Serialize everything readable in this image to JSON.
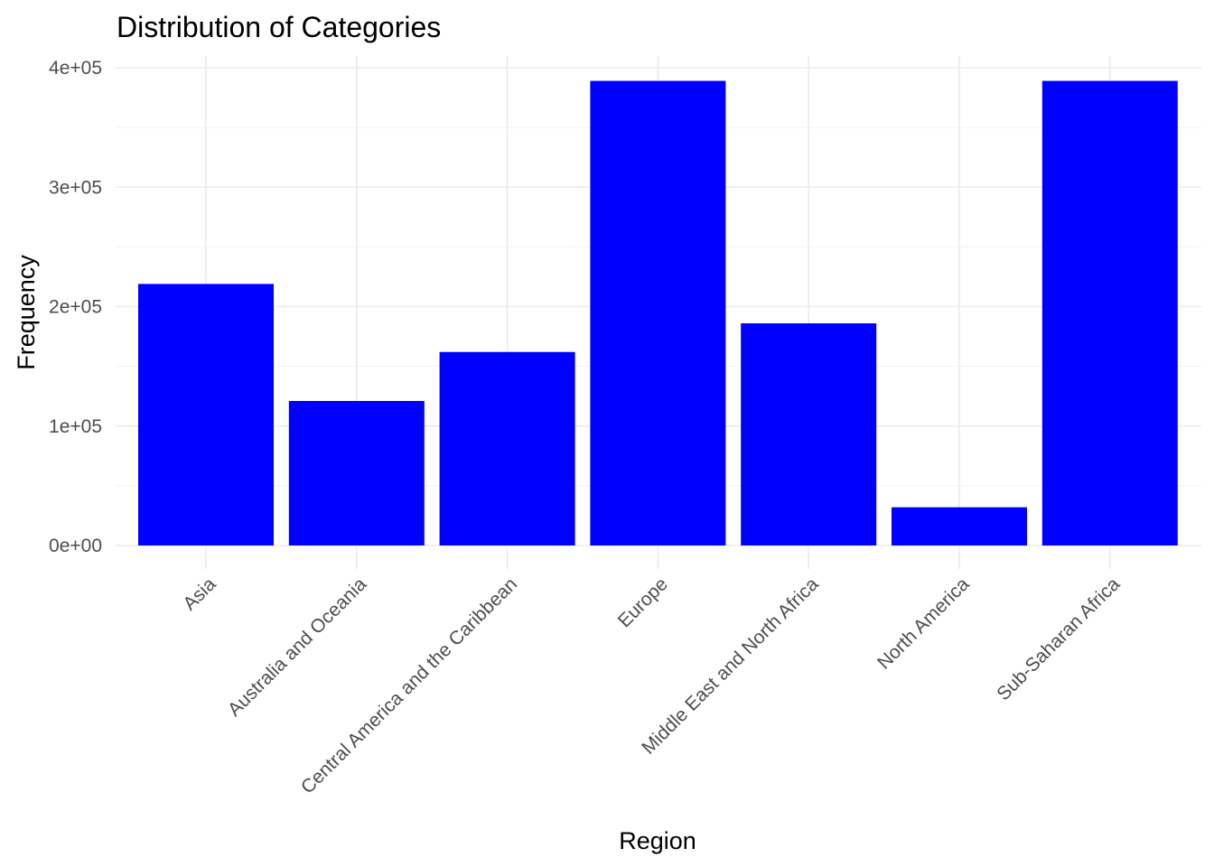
{
  "chart_data": {
    "type": "bar",
    "title": "Distribution of Categories",
    "xlabel": "Region",
    "ylabel": "Frequency",
    "categories": [
      "Asia",
      "Australia and Oceania",
      "Central America and the Caribbean",
      "Europe",
      "Middle East and North Africa",
      "North America",
      "Sub-Saharan Africa"
    ],
    "values": [
      219000,
      121000,
      162000,
      389000,
      186000,
      32000,
      389000
    ],
    "ylim": [
      0,
      400000
    ],
    "yticks": [
      {
        "value": 0,
        "label": "0e+00"
      },
      {
        "value": 100000,
        "label": "1e+05"
      },
      {
        "value": 200000,
        "label": "2e+05"
      },
      {
        "value": 300000,
        "label": "3e+05"
      },
      {
        "value": 400000,
        "label": "4e+05"
      }
    ],
    "bar_color": "#0000ff",
    "grid": true,
    "legend": "none"
  }
}
